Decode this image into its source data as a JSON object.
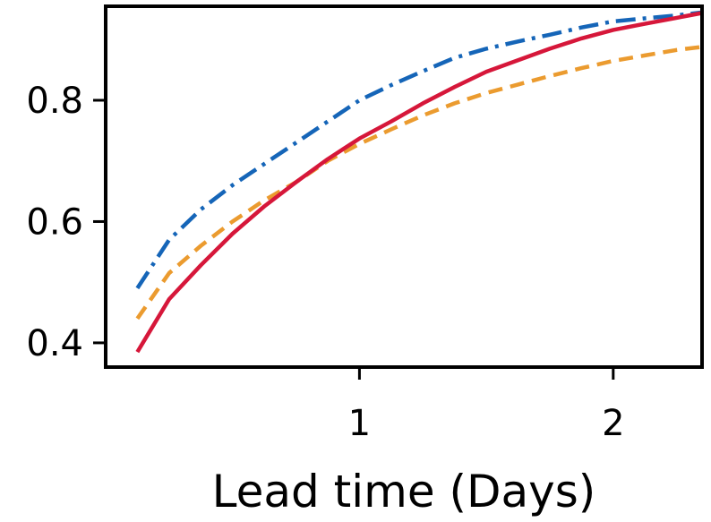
{
  "chart_data": {
    "type": "line",
    "title": "",
    "xlabel": "Lead time (Days)",
    "ylabel": "",
    "xlim": [
      -0.0,
      2.35
    ],
    "ylim": [
      0.36,
      0.955
    ],
    "xticks": [
      1,
      2
    ],
    "xtick_labels": [
      "1",
      "2"
    ],
    "yticks": [
      0.4,
      0.6,
      0.8
    ],
    "ytick_labels": [
      "0.4",
      "0.6",
      "0.8"
    ],
    "grid": false,
    "legend": "none",
    "series": [
      {
        "color": "#1565b8",
        "line_style": "dashdot",
        "x": [
          0.125,
          0.25,
          0.375,
          0.5,
          0.625,
          0.75,
          0.875,
          1.0,
          1.125,
          1.25,
          1.375,
          1.5,
          1.625,
          1.75,
          1.875,
          2.0,
          2.125,
          2.25,
          2.35
        ],
        "values": [
          0.49,
          0.57,
          0.62,
          0.66,
          0.695,
          0.73,
          0.765,
          0.8,
          0.825,
          0.848,
          0.87,
          0.885,
          0.897,
          0.908,
          0.92,
          0.93,
          0.935,
          0.94,
          0.945
        ]
      },
      {
        "color": "#eb9b2f",
        "line_style": "dashed",
        "x": [
          0.125,
          0.25,
          0.375,
          0.5,
          0.625,
          0.75,
          0.875,
          1.0,
          1.125,
          1.25,
          1.375,
          1.5,
          1.625,
          1.75,
          1.875,
          2.0,
          2.125,
          2.25,
          2.35
        ],
        "values": [
          0.44,
          0.515,
          0.56,
          0.6,
          0.635,
          0.665,
          0.7,
          0.728,
          0.752,
          0.775,
          0.795,
          0.812,
          0.826,
          0.84,
          0.853,
          0.865,
          0.874,
          0.883,
          0.888
        ]
      },
      {
        "color": "#d6173a",
        "line_style": "solid",
        "x": [
          0.125,
          0.25,
          0.375,
          0.5,
          0.625,
          0.75,
          0.875,
          1.0,
          1.125,
          1.25,
          1.375,
          1.5,
          1.625,
          1.75,
          1.875,
          2.0,
          2.125,
          2.25,
          2.35
        ],
        "values": [
          0.385,
          0.472,
          0.528,
          0.58,
          0.625,
          0.665,
          0.703,
          0.737,
          0.765,
          0.795,
          0.822,
          0.847,
          0.866,
          0.885,
          0.902,
          0.916,
          0.926,
          0.936,
          0.944
        ]
      }
    ]
  }
}
